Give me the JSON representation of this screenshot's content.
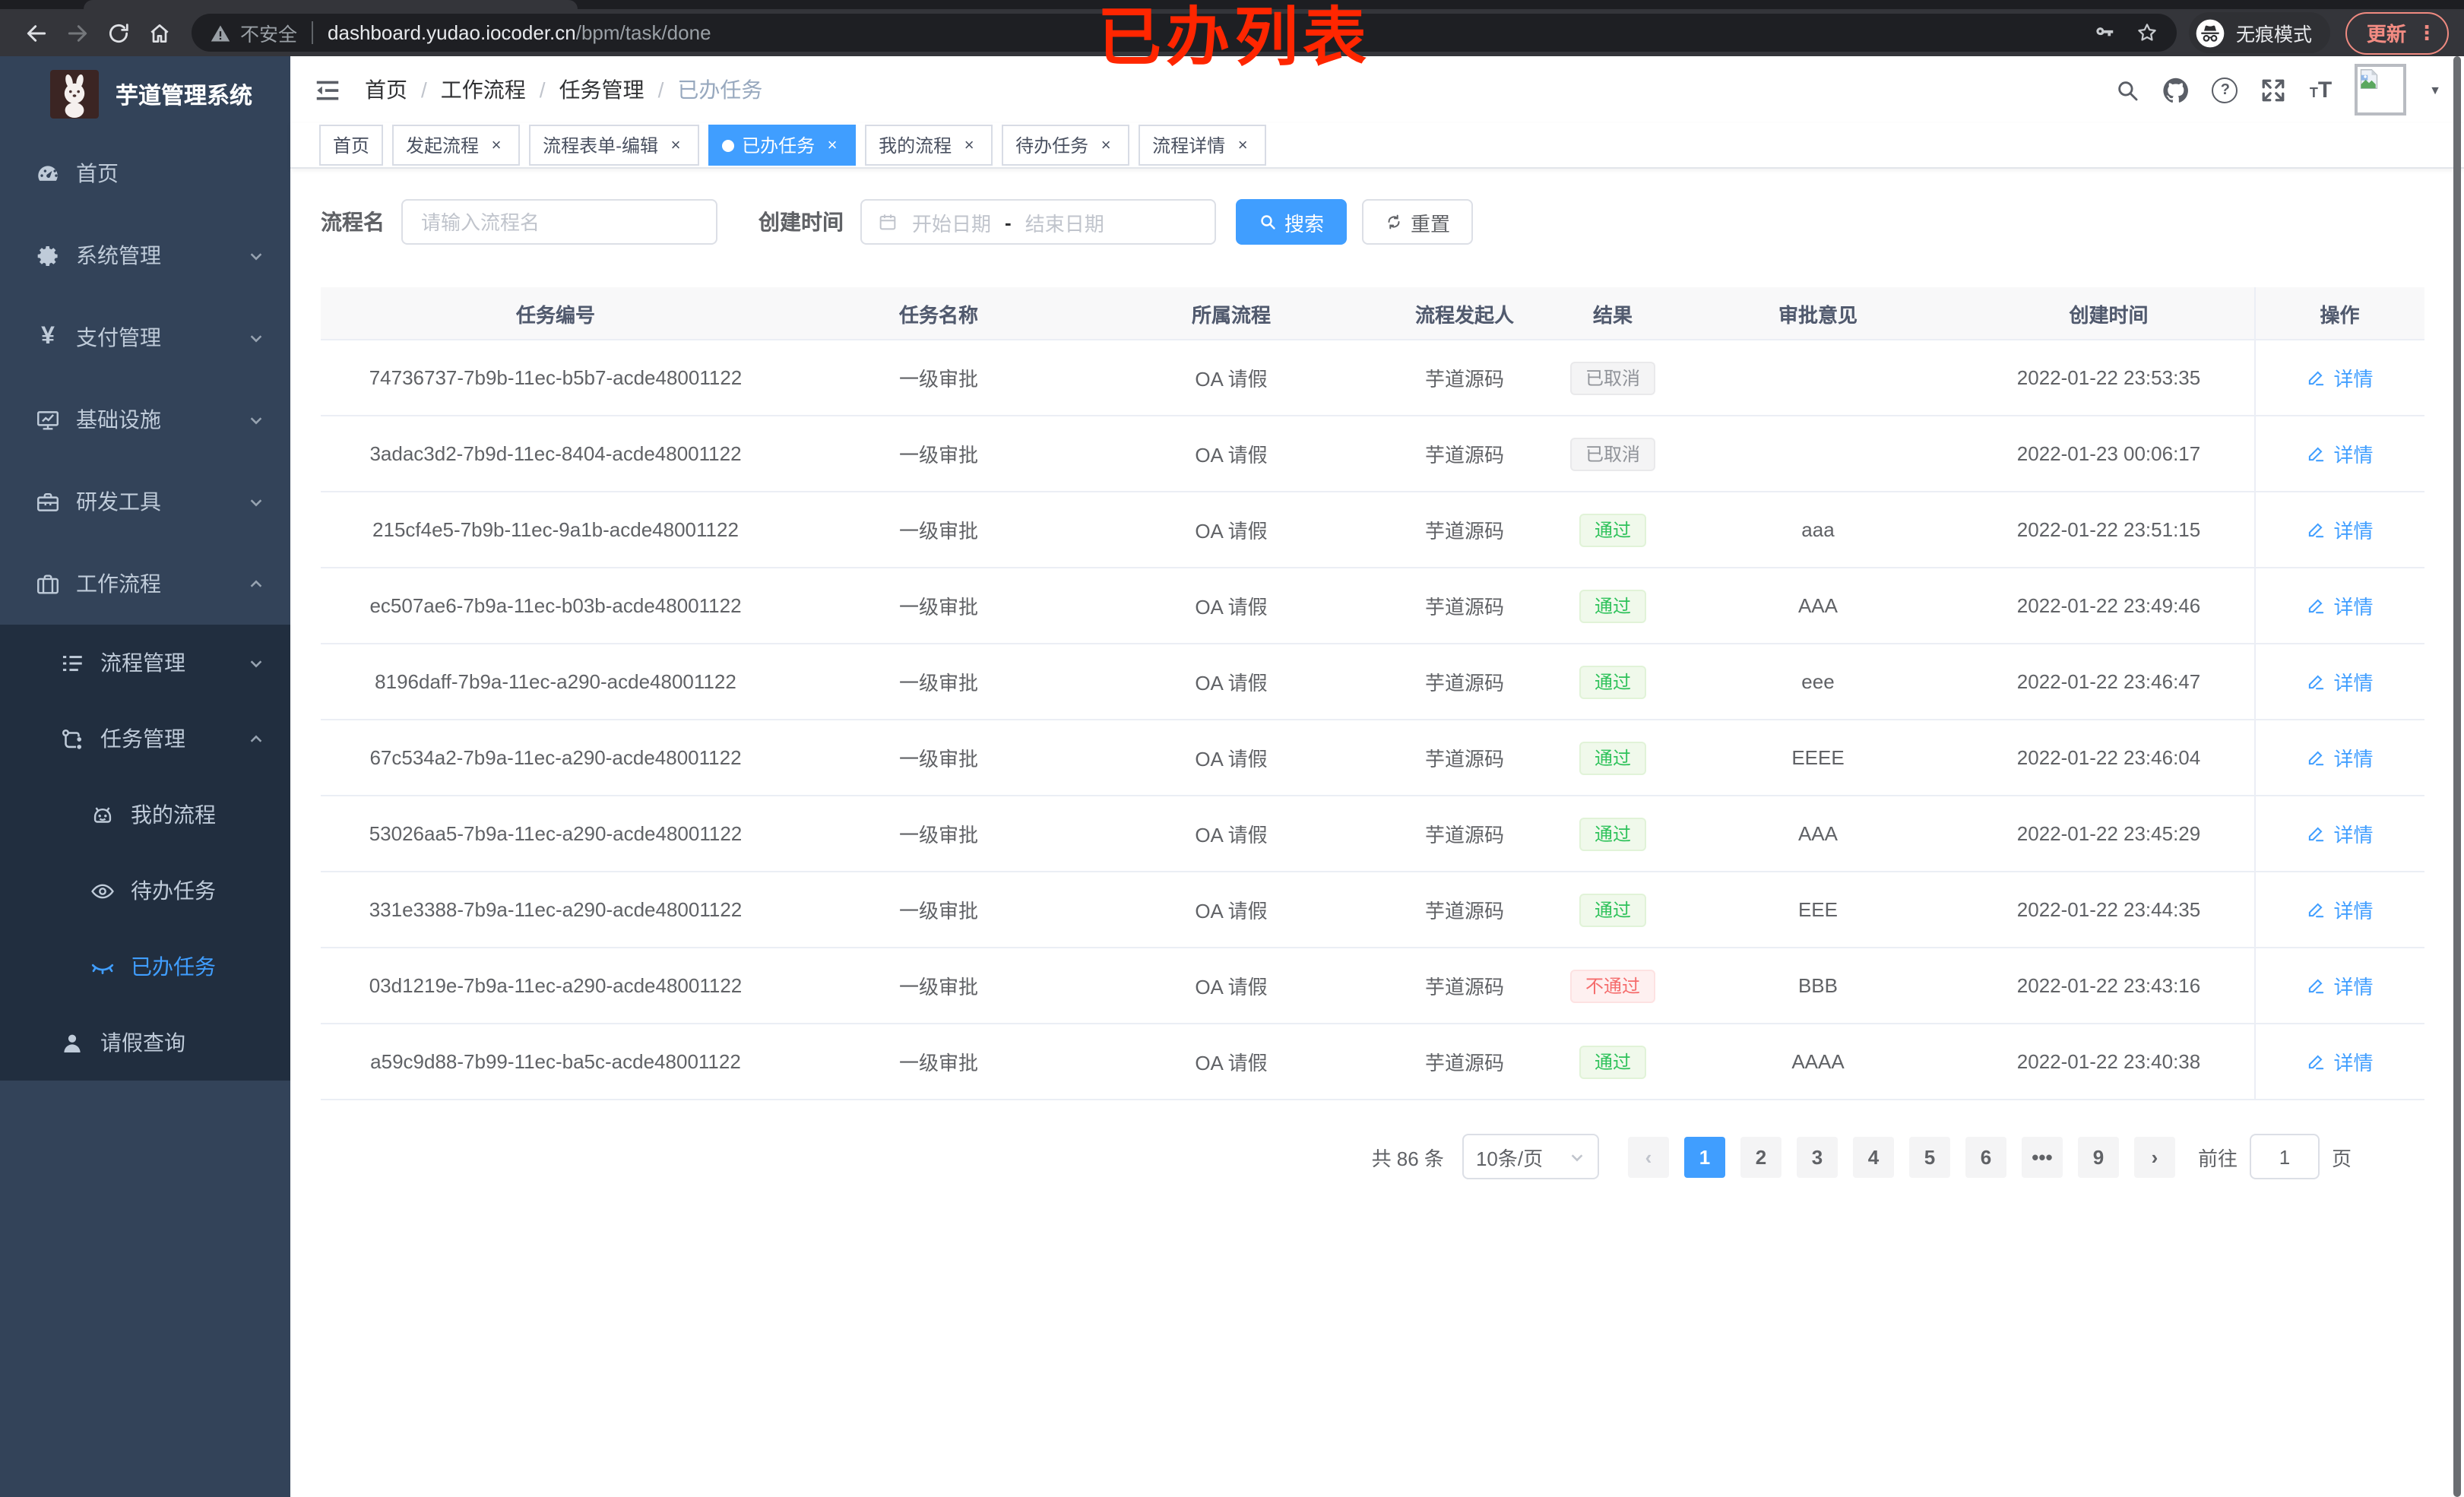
{
  "browser": {
    "insecure_label": "不安全",
    "url_host": "dashboard.yudao.iocoder.cn",
    "url_path": "/bpm/task/done",
    "incognito_label": "无痕模式",
    "update_label": "更新",
    "annotation": "已办列表"
  },
  "sidebar": {
    "title": "芋道管理系统",
    "logo_icon": "rabbit-logo",
    "items": [
      {
        "name": "home",
        "label": "首页",
        "icon": "dashboard-icon",
        "level": 1
      },
      {
        "name": "system",
        "label": "系统管理",
        "icon": "gear-icon",
        "level": 1,
        "arrow": "down"
      },
      {
        "name": "payment",
        "label": "支付管理",
        "icon": "yen-icon",
        "level": 1,
        "arrow": "down"
      },
      {
        "name": "infrastructure",
        "label": "基础设施",
        "icon": "monitor-icon",
        "level": 1,
        "arrow": "down"
      },
      {
        "name": "devtools",
        "label": "研发工具",
        "icon": "toolbox-icon",
        "level": 1,
        "arrow": "down"
      },
      {
        "name": "workflow",
        "label": "工作流程",
        "icon": "suitcase-icon",
        "level": 1,
        "arrow": "up"
      },
      {
        "name": "process-management",
        "label": "流程管理",
        "icon": "list-icon",
        "level": 2,
        "dark": true,
        "arrow": "down"
      },
      {
        "name": "task-management",
        "label": "任务管理",
        "icon": "tree-icon",
        "level": 2,
        "dark": true,
        "arrow": "up"
      },
      {
        "name": "my-process",
        "label": "我的流程",
        "icon": "robot-icon",
        "level": 3,
        "dark": true
      },
      {
        "name": "todo-task",
        "label": "待办任务",
        "icon": "eye-icon",
        "level": 3,
        "dark": true
      },
      {
        "name": "done-task",
        "label": "已办任务",
        "icon": "eye-closed-icon",
        "level": 3,
        "dark": true,
        "active": true
      },
      {
        "name": "leave-query",
        "label": "请假查询",
        "icon": "user-icon",
        "level": 2,
        "dark": true
      }
    ]
  },
  "header": {
    "breadcrumb": [
      "首页",
      "工作流程",
      "任务管理",
      "已办任务"
    ],
    "breadcrumb_separator": "/",
    "icons": [
      "fold-icon",
      "search-icon",
      "github-icon",
      "question-icon",
      "fullscreen-icon",
      "font-size-icon",
      "avatar-image",
      "caret-down-icon"
    ]
  },
  "tabs": [
    {
      "label": "首页"
    },
    {
      "label": "发起流程",
      "closable": true
    },
    {
      "label": "流程表单-编辑",
      "closable": true
    },
    {
      "label": "已办任务",
      "closable": true,
      "active": true
    },
    {
      "label": "我的流程",
      "closable": true
    },
    {
      "label": "待办任务",
      "closable": true
    },
    {
      "label": "流程详情",
      "closable": true
    }
  ],
  "filters": {
    "name_label": "流程名",
    "name_placeholder": "请输入流程名",
    "time_label": "创建时间",
    "start_placeholder": "开始日期",
    "range_separator": "-",
    "end_placeholder": "结束日期",
    "search_label": "搜索",
    "search_icon": "magnifier-icon",
    "reset_label": "重置",
    "reset_icon": "refresh-icon",
    "calendar_icon": "calendar-icon"
  },
  "table": {
    "columns": [
      "任务编号",
      "任务名称",
      "所属流程",
      "流程发起人",
      "结果",
      "审批意见",
      "创建时间",
      "操作"
    ],
    "action_label": "详情",
    "action_icon": "edit-icon",
    "rows": [
      {
        "id": "74736737-7b9b-11ec-b5b7-acde48001122",
        "task": "一级审批",
        "process": "OA 请假",
        "starter": "芋道源码",
        "result": "已取消",
        "result_type": "info",
        "comment": "",
        "created": "2022-01-22 23:53:35"
      },
      {
        "id": "3adac3d2-7b9d-11ec-8404-acde48001122",
        "task": "一级审批",
        "process": "OA 请假",
        "starter": "芋道源码",
        "result": "已取消",
        "result_type": "info",
        "comment": "",
        "created": "2022-01-23 00:06:17"
      },
      {
        "id": "215cf4e5-7b9b-11ec-9a1b-acde48001122",
        "task": "一级审批",
        "process": "OA 请假",
        "starter": "芋道源码",
        "result": "通过",
        "result_type": "success",
        "comment": "aaa",
        "created": "2022-01-22 23:51:15"
      },
      {
        "id": "ec507ae6-7b9a-11ec-b03b-acde48001122",
        "task": "一级审批",
        "process": "OA 请假",
        "starter": "芋道源码",
        "result": "通过",
        "result_type": "success",
        "comment": "AAA",
        "created": "2022-01-22 23:49:46"
      },
      {
        "id": "8196daff-7b9a-11ec-a290-acde48001122",
        "task": "一级审批",
        "process": "OA 请假",
        "starter": "芋道源码",
        "result": "通过",
        "result_type": "success",
        "comment": "eee",
        "created": "2022-01-22 23:46:47"
      },
      {
        "id": "67c534a2-7b9a-11ec-a290-acde48001122",
        "task": "一级审批",
        "process": "OA 请假",
        "starter": "芋道源码",
        "result": "通过",
        "result_type": "success",
        "comment": "EEEE",
        "created": "2022-01-22 23:46:04"
      },
      {
        "id": "53026aa5-7b9a-11ec-a290-acde48001122",
        "task": "一级审批",
        "process": "OA 请假",
        "starter": "芋道源码",
        "result": "通过",
        "result_type": "success",
        "comment": "AAA",
        "created": "2022-01-22 23:45:29"
      },
      {
        "id": "331e3388-7b9a-11ec-a290-acde48001122",
        "task": "一级审批",
        "process": "OA 请假",
        "starter": "芋道源码",
        "result": "通过",
        "result_type": "success",
        "comment": "EEE",
        "created": "2022-01-22 23:44:35"
      },
      {
        "id": "03d1219e-7b9a-11ec-a290-acde48001122",
        "task": "一级审批",
        "process": "OA 请假",
        "starter": "芋道源码",
        "result": "不通过",
        "result_type": "danger",
        "comment": "BBB",
        "created": "2022-01-22 23:43:16"
      },
      {
        "id": "a59c9d88-7b99-11ec-ba5c-acde48001122",
        "task": "一级审批",
        "process": "OA 请假",
        "starter": "芋道源码",
        "result": "通过",
        "result_type": "success",
        "comment": "AAAA",
        "created": "2022-01-22 23:40:38"
      }
    ]
  },
  "pagination": {
    "total": "共 86 条",
    "page_size": "10条/页",
    "prev": "‹",
    "pages": [
      "1",
      "2",
      "3",
      "4",
      "5",
      "6",
      "•••",
      "9"
    ],
    "active_page": "1",
    "next": "›",
    "goto": "前往",
    "goto_value": "1",
    "unit": "页"
  },
  "colors": {
    "accent": "#409eff",
    "success": "#2fc25b",
    "danger": "#f56c6c",
    "info": "#909399",
    "annotation": "#ff2600",
    "update_button": "#f28b82",
    "sidebar_bg": "#334359",
    "sidebar_submenu_bg": "#212e3f"
  }
}
